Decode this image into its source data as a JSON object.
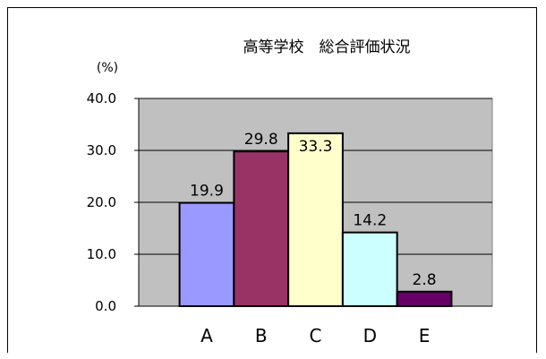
{
  "chart_data": {
    "type": "bar",
    "title": "高等学校　総合評価状況",
    "ylabel": "(%)",
    "xlabel": "",
    "categories": [
      "A",
      "B",
      "C",
      "D",
      "E"
    ],
    "values": [
      19.9,
      29.8,
      33.3,
      14.2,
      2.8
    ],
    "value_labels": [
      "19.9",
      "29.8",
      "33.3",
      "14.2",
      "2.8"
    ],
    "bar_colors": [
      "#9999ff",
      "#993366",
      "#ffffcc",
      "#ccffff",
      "#660066"
    ],
    "ylim": [
      0,
      40
    ],
    "yticks": [
      0,
      10,
      20,
      30,
      40
    ],
    "ytick_labels": [
      "0.0",
      "10.0",
      "20.0",
      "30.0",
      "40.0"
    ],
    "plot_background": "#c0c0c0",
    "grid": true,
    "legend": "none"
  }
}
